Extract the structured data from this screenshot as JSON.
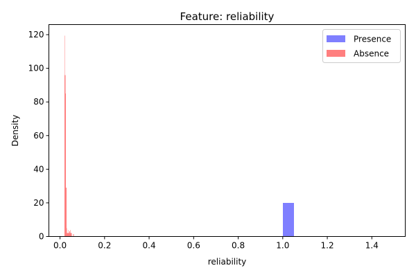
{
  "chart_data": {
    "type": "histogram",
    "title": "Feature: reliability",
    "xlabel": "reliability",
    "ylabel": "Density",
    "xlim": [
      -0.05,
      1.55
    ],
    "ylim": [
      0,
      126
    ],
    "x_ticks": [
      0.0,
      0.2,
      0.4,
      0.6,
      0.8,
      1.0,
      1.2,
      1.4
    ],
    "x_tick_labels": [
      "0.0",
      "0.2",
      "0.4",
      "0.6",
      "0.8",
      "1.0",
      "1.2",
      "1.4"
    ],
    "y_ticks": [
      0,
      20,
      40,
      60,
      80,
      100,
      120
    ],
    "y_tick_labels": [
      "0",
      "20",
      "40",
      "60",
      "80",
      "100",
      "120"
    ],
    "grid": false,
    "legend_position": "top-right",
    "series": [
      {
        "name": "Presence",
        "color": "#7f7fff",
        "bins": [
          {
            "x0": 1.0,
            "x1": 1.05,
            "value": 20
          }
        ]
      },
      {
        "name": "Absence",
        "color": "#ff7f7f",
        "bins": [
          {
            "x0": 0.02,
            "x1": 0.0222,
            "value": 119.5
          },
          {
            "x0": 0.0222,
            "x1": 0.0244,
            "value": 96
          },
          {
            "x0": 0.0244,
            "x1": 0.0266,
            "value": 85
          },
          {
            "x0": 0.0266,
            "x1": 0.0288,
            "value": 29
          },
          {
            "x0": 0.0288,
            "x1": 0.031,
            "value": 5
          },
          {
            "x0": 0.031,
            "x1": 0.0332,
            "value": 2
          },
          {
            "x0": 0.0332,
            "x1": 0.0354,
            "value": 2
          },
          {
            "x0": 0.0354,
            "x1": 0.0376,
            "value": 4
          },
          {
            "x0": 0.0376,
            "x1": 0.0398,
            "value": 2
          },
          {
            "x0": 0.0398,
            "x1": 0.042,
            "value": 2
          },
          {
            "x0": 0.042,
            "x1": 0.0442,
            "value": 3
          },
          {
            "x0": 0.0442,
            "x1": 0.0464,
            "value": 2
          },
          {
            "x0": 0.0464,
            "x1": 0.0486,
            "value": 4
          },
          {
            "x0": 0.0486,
            "x1": 0.0508,
            "value": 2
          },
          {
            "x0": 0.0508,
            "x1": 0.053,
            "value": 2
          },
          {
            "x0": 0.0596,
            "x1": 0.0618,
            "value": 1.5
          }
        ]
      }
    ]
  }
}
